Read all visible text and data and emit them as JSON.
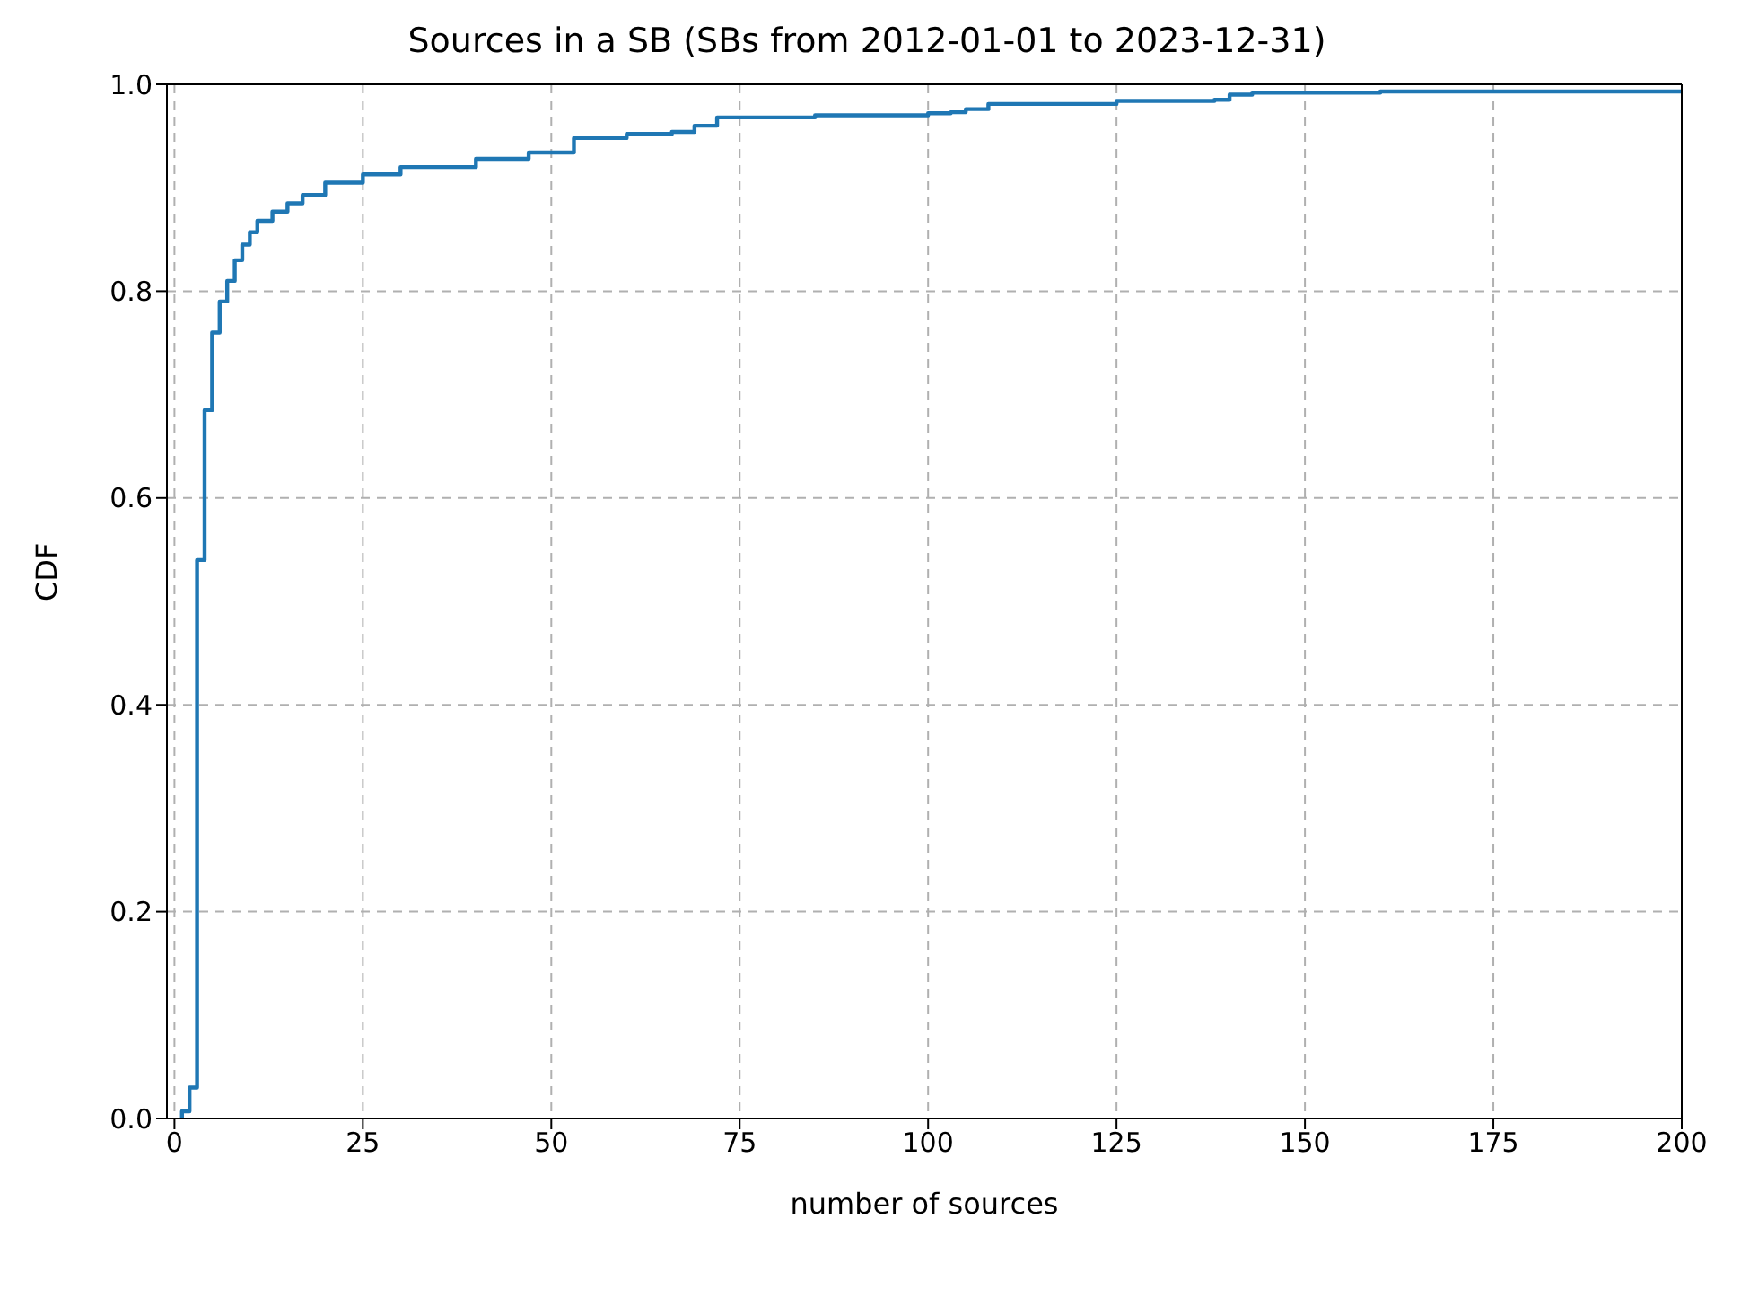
{
  "chart_data": {
    "type": "step",
    "title": "Sources in a SB (SBs from 2012-01-01 to 2023-12-31)",
    "xlabel": "number of sources",
    "ylabel": "CDF",
    "series": [
      {
        "color": "#1f77b4",
        "x": [
          1,
          1,
          2,
          3,
          4,
          5,
          6,
          7,
          8,
          9,
          10,
          11,
          13,
          15,
          17,
          20,
          25,
          30,
          40,
          47,
          53,
          53,
          60,
          66,
          69,
          72,
          85,
          100,
          103,
          105,
          108,
          125,
          138,
          140,
          143,
          160,
          200
        ],
        "values": [
          0,
          0.007,
          0.03,
          0.54,
          0.685,
          0.76,
          0.79,
          0.81,
          0.83,
          0.845,
          0.857,
          0.868,
          0.877,
          0.885,
          0.893,
          0.905,
          0.913,
          0.92,
          0.928,
          0.934,
          0.938,
          0.948,
          0.952,
          0.954,
          0.96,
          0.968,
          0.97,
          0.972,
          0.973,
          0.976,
          0.981,
          0.984,
          0.985,
          0.99,
          0.992,
          0.993,
          0.994
        ]
      }
    ],
    "xlim": [
      -1,
      200
    ],
    "xticks": [
      0,
      25,
      50,
      75,
      100,
      125,
      150,
      175,
      200
    ],
    "ylim": [
      0,
      1
    ],
    "yticks": [
      {
        "value": 0,
        "label": "0.0"
      },
      {
        "value": 0.2,
        "label": "0.2"
      },
      {
        "value": 0.4,
        "label": "0.4"
      },
      {
        "value": 0.6,
        "label": "0.6"
      },
      {
        "value": 0.8,
        "label": "0.8"
      },
      {
        "value": 1,
        "label": "1.0"
      }
    ],
    "grid": true,
    "marker": "none"
  }
}
